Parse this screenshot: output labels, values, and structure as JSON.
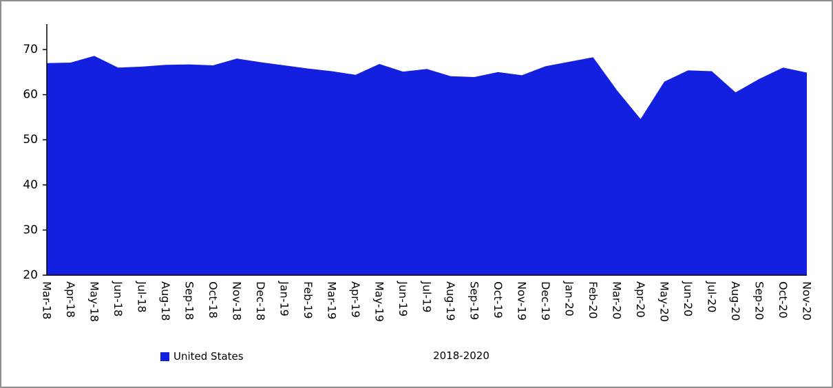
{
  "colors": {
    "area_fill": "#1420E0",
    "axis": "#000000",
    "text": "#000000",
    "frame_border": "#8f8f8f",
    "background": "#ffffff"
  },
  "chart_data": {
    "type": "area",
    "title": "",
    "xlabel": "2018-2020",
    "ylabel": "",
    "ylim": [
      20,
      70
    ],
    "yticks": [
      20,
      30,
      40,
      50,
      60,
      70
    ],
    "grid": false,
    "legend_position": "bottom-left",
    "categories": [
      "Mar-18",
      "Apr-18",
      "May-18",
      "Jun-18",
      "Jul-18",
      "Aug-18",
      "Sep-18",
      "Oct-18",
      "Nov-18",
      "Dec-18",
      "Jan-19",
      "Feb-19",
      "Mar-19",
      "Apr-19",
      "May-19",
      "Jun-19",
      "Jul-19",
      "Aug-19",
      "Sep-19",
      "Oct-19",
      "Nov-19",
      "Dec-19",
      "Jan-20",
      "Feb-20",
      "Mar-20",
      "Apr-20",
      "May-20",
      "Jun-20",
      "Jul-20",
      "Aug-20",
      "Sep-20",
      "Oct-20",
      "Nov-20"
    ],
    "series": [
      {
        "name": "United States",
        "color": "#1420E0",
        "values": [
          67.0,
          67.1,
          68.6,
          66.0,
          66.2,
          66.6,
          66.7,
          66.5,
          68.0,
          67.2,
          66.5,
          65.8,
          65.2,
          64.4,
          66.8,
          65.1,
          65.7,
          64.1,
          63.9,
          65.0,
          64.3,
          66.3,
          67.3,
          68.3,
          61.0,
          54.6,
          62.9,
          65.4,
          65.2,
          60.5,
          63.5,
          66.0,
          64.9
        ]
      }
    ]
  },
  "legend": {
    "label": "United States"
  }
}
